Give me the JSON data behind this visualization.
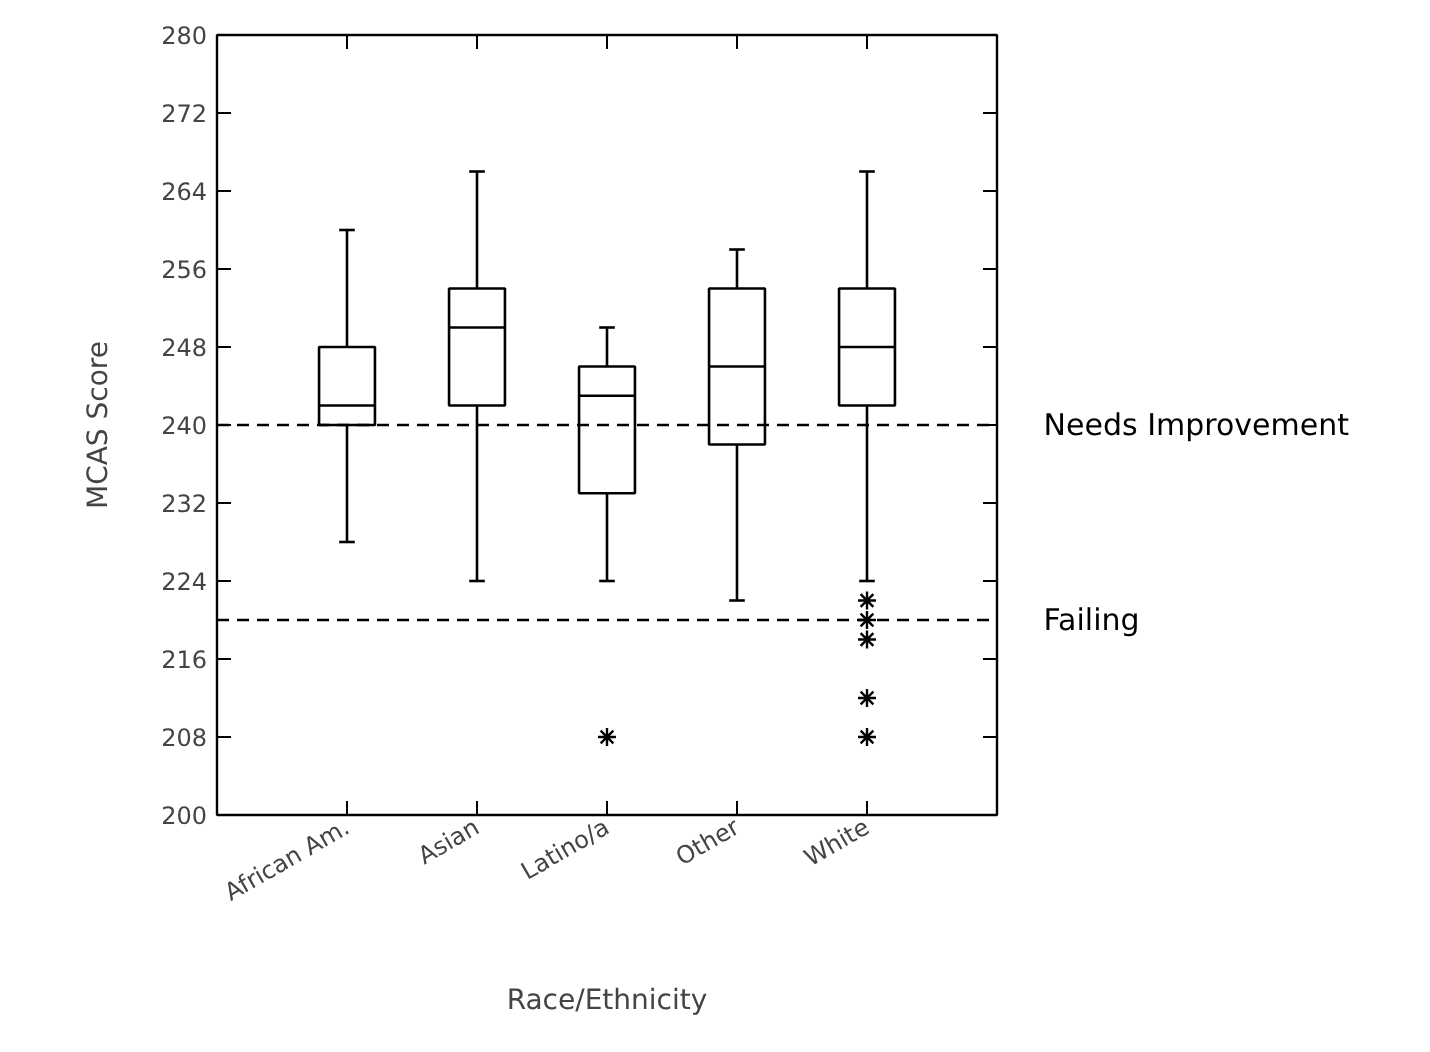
{
  "chart_data": {
    "type": "box",
    "xlabel": "Race/Ethnicity",
    "ylabel": "MCAS Score",
    "categories": [
      "African Am.",
      "Asian",
      "Latino/a",
      "Other",
      "White"
    ],
    "boxes": [
      {
        "low": 228,
        "q1": 240,
        "median": 242,
        "q3": 248,
        "high": 260
      },
      {
        "low": 224,
        "q1": 242,
        "median": 250,
        "q3": 254,
        "high": 266
      },
      {
        "low": 224,
        "q1": 233,
        "median": 243,
        "q3": 246,
        "high": 250,
        "outliers": [
          208
        ]
      },
      {
        "low": 222,
        "q1": 238,
        "median": 246,
        "q3": 254,
        "high": 258
      },
      {
        "low": 224,
        "q1": 242,
        "median": 248,
        "q3": 254,
        "high": 266,
        "outliers": [
          222,
          220,
          218,
          212,
          208
        ]
      }
    ],
    "ylim": [
      200,
      280
    ],
    "yticks": [
      200,
      208,
      216,
      224,
      232,
      240,
      248,
      256,
      264,
      272,
      280
    ],
    "ref_lines": [
      {
        "axis": "y",
        "value": 240,
        "label": "Needs Improvement",
        "line_style": "dashed"
      },
      {
        "axis": "y",
        "value": 220,
        "label": "Failing",
        "line_style": "dashed"
      }
    ],
    "grid": false
  }
}
